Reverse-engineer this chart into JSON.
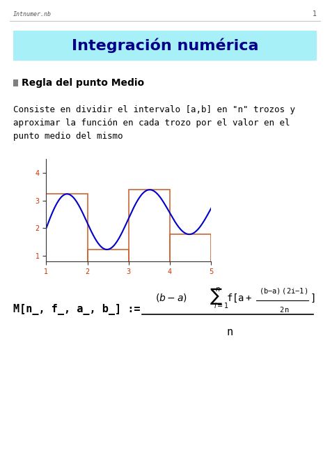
{
  "bg_color": "#ffffff",
  "header_bg": "#a8f0f8",
  "header_text": "Integración numérica",
  "header_text_color": "#00008B",
  "header_fontsize": 16,
  "top_label": "Intnumer.nb",
  "top_page": "1",
  "section_icon_color": "#808080",
  "section_title": "Regla del punto Medio",
  "section_fontsize": 10,
  "body_text": "Consiste en dividir el intervalo [a,b] en \"n\" trozos y\naproximar la función en cada trozo por el valor en el\npunto medio del mismo",
  "body_fontsize": 9,
  "curve_color": "#0000cc",
  "bar_color": "#cc6633",
  "formula_lhs": "M[n_, f_, a_, b_] :=",
  "formula_fontsize": 11,
  "plot_xlim": [
    1,
    5
  ],
  "plot_ylim": [
    1,
    4.2
  ],
  "plot_yticks": [
    1,
    2,
    3,
    4
  ],
  "plot_xticks": [
    1,
    2,
    3,
    4,
    5
  ],
  "n_bars": 4,
  "a": 1,
  "b": 5
}
